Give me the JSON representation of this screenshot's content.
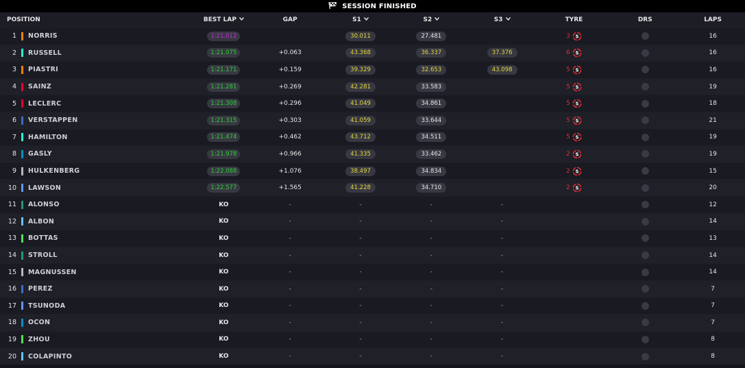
{
  "status": {
    "label": "SESSION FINISHED"
  },
  "columns": {
    "position": "POSITION",
    "best_lap": "BEST LAP",
    "gap": "GAP",
    "s1": "S1",
    "s2": "S2",
    "s3": "S3",
    "tyre": "TYRE",
    "drs": "DRS",
    "laps": "LAPS"
  },
  "rows": [
    {
      "pos": "1",
      "driver": "NORRIS",
      "team_color": "#ff8000",
      "best": "1:21.012",
      "best_color": "purple",
      "gap": "",
      "s1": "30.011",
      "s1_color": "yellow",
      "s2": "27.481",
      "s2_color": "white",
      "s3": "",
      "s3_color": "",
      "tyre_age": "3",
      "tyre_icon": "soft-tyre-icon",
      "laps": "16"
    },
    {
      "pos": "2",
      "driver": "RUSSELL",
      "team_color": "#27f4d2",
      "best": "1:21.075",
      "best_color": "green",
      "gap": "+0.063",
      "s1": "43.368",
      "s1_color": "yellow",
      "s2": "36.337",
      "s2_color": "yellow",
      "s3": "37.376",
      "s3_color": "yellow",
      "tyre_age": "6",
      "tyre_icon": "soft-tyre-icon",
      "laps": "16"
    },
    {
      "pos": "3",
      "driver": "PIASTRI",
      "team_color": "#ff8000",
      "best": "1:21.171",
      "best_color": "green",
      "gap": "+0.159",
      "s1": "39.329",
      "s1_color": "yellow",
      "s2": "32.653",
      "s2_color": "yellow",
      "s3": "43.098",
      "s3_color": "yellow",
      "tyre_age": "5",
      "tyre_icon": "soft-tyre-icon",
      "laps": "16"
    },
    {
      "pos": "4",
      "driver": "SAINZ",
      "team_color": "#e8002d",
      "best": "1:21.281",
      "best_color": "green",
      "gap": "+0.269",
      "s1": "42.281",
      "s1_color": "yellow",
      "s2": "33.583",
      "s2_color": "white",
      "s3": "",
      "s3_color": "",
      "tyre_age": "5",
      "tyre_icon": "soft-tyre-icon",
      "laps": "19"
    },
    {
      "pos": "5",
      "driver": "LECLERC",
      "team_color": "#e8002d",
      "best": "1:21.308",
      "best_color": "green",
      "gap": "+0.296",
      "s1": "41.049",
      "s1_color": "yellow",
      "s2": "34.861",
      "s2_color": "white",
      "s3": "",
      "s3_color": "",
      "tyre_age": "5",
      "tyre_icon": "soft-tyre-icon",
      "laps": "18"
    },
    {
      "pos": "6",
      "driver": "VERSTAPPEN",
      "team_color": "#3671c6",
      "best": "1:21.315",
      "best_color": "green",
      "gap": "+0.303",
      "s1": "41.059",
      "s1_color": "yellow",
      "s2": "33.644",
      "s2_color": "white",
      "s3": "",
      "s3_color": "",
      "tyre_age": "5",
      "tyre_icon": "soft-tyre-icon",
      "laps": "21"
    },
    {
      "pos": "7",
      "driver": "HAMILTON",
      "team_color": "#27f4d2",
      "best": "1:21.474",
      "best_color": "green",
      "gap": "+0.462",
      "s1": "43.712",
      "s1_color": "yellow",
      "s2": "34.511",
      "s2_color": "white",
      "s3": "",
      "s3_color": "",
      "tyre_age": "5",
      "tyre_icon": "soft-tyre-icon",
      "laps": "19"
    },
    {
      "pos": "8",
      "driver": "GASLY",
      "team_color": "#0093cc",
      "best": "1:21.978",
      "best_color": "green",
      "gap": "+0.966",
      "s1": "41.335",
      "s1_color": "yellow",
      "s2": "33.462",
      "s2_color": "white",
      "s3": "",
      "s3_color": "",
      "tyre_age": "2",
      "tyre_icon": "soft-tyre-icon",
      "laps": "19"
    },
    {
      "pos": "9",
      "driver": "HULKENBERG",
      "team_color": "#b6babd",
      "best": "1:22.088",
      "best_color": "green",
      "gap": "+1.076",
      "s1": "38.497",
      "s1_color": "yellow",
      "s2": "34.834",
      "s2_color": "white",
      "s3": "",
      "s3_color": "",
      "tyre_age": "2",
      "tyre_icon": "soft-tyre-icon",
      "laps": "15"
    },
    {
      "pos": "10",
      "driver": "LAWSON",
      "team_color": "#6692ff",
      "best": "1:22.577",
      "best_color": "green",
      "gap": "+1.565",
      "s1": "41.228",
      "s1_color": "yellow",
      "s2": "34.710",
      "s2_color": "white",
      "s3": "",
      "s3_color": "",
      "tyre_age": "2",
      "tyre_icon": "soft-tyre-icon",
      "laps": "20"
    },
    {
      "pos": "11",
      "driver": "ALONSO",
      "team_color": "#229971",
      "best": "KO",
      "best_color": "ko",
      "gap": "-",
      "s1": "-",
      "s1_color": "dash",
      "s2": "-",
      "s2_color": "dash",
      "s3": "-",
      "s3_color": "dash",
      "tyre_age": "",
      "tyre_icon": "",
      "laps": "12"
    },
    {
      "pos": "12",
      "driver": "ALBON",
      "team_color": "#64c4ff",
      "best": "KO",
      "best_color": "ko",
      "gap": "-",
      "s1": "-",
      "s1_color": "dash",
      "s2": "-",
      "s2_color": "dash",
      "s3": "-",
      "s3_color": "dash",
      "tyre_age": "",
      "tyre_icon": "",
      "laps": "14"
    },
    {
      "pos": "13",
      "driver": "BOTTAS",
      "team_color": "#52e252",
      "best": "KO",
      "best_color": "ko",
      "gap": "-",
      "s1": "-",
      "s1_color": "dash",
      "s2": "-",
      "s2_color": "dash",
      "s3": "-",
      "s3_color": "dash",
      "tyre_age": "",
      "tyre_icon": "",
      "laps": "13"
    },
    {
      "pos": "14",
      "driver": "STROLL",
      "team_color": "#229971",
      "best": "KO",
      "best_color": "ko",
      "gap": "-",
      "s1": "-",
      "s1_color": "dash",
      "s2": "-",
      "s2_color": "dash",
      "s3": "-",
      "s3_color": "dash",
      "tyre_age": "",
      "tyre_icon": "",
      "laps": "14"
    },
    {
      "pos": "15",
      "driver": "MAGNUSSEN",
      "team_color": "#b6babd",
      "best": "KO",
      "best_color": "ko",
      "gap": "-",
      "s1": "-",
      "s1_color": "dash",
      "s2": "-",
      "s2_color": "dash",
      "s3": "-",
      "s3_color": "dash",
      "tyre_age": "",
      "tyre_icon": "",
      "laps": "14"
    },
    {
      "pos": "16",
      "driver": "PEREZ",
      "team_color": "#3671c6",
      "best": "KO",
      "best_color": "ko",
      "gap": "-",
      "s1": "-",
      "s1_color": "dash",
      "s2": "-",
      "s2_color": "dash",
      "s3": "-",
      "s3_color": "dash",
      "tyre_age": "",
      "tyre_icon": "",
      "laps": "7"
    },
    {
      "pos": "17",
      "driver": "TSUNODA",
      "team_color": "#6692ff",
      "best": "KO",
      "best_color": "ko",
      "gap": "-",
      "s1": "-",
      "s1_color": "dash",
      "s2": "-",
      "s2_color": "dash",
      "s3": "-",
      "s3_color": "dash",
      "tyre_age": "",
      "tyre_icon": "",
      "laps": "7"
    },
    {
      "pos": "18",
      "driver": "OCON",
      "team_color": "#0093cc",
      "best": "KO",
      "best_color": "ko",
      "gap": "-",
      "s1": "-",
      "s1_color": "dash",
      "s2": "-",
      "s2_color": "dash",
      "s3": "-",
      "s3_color": "dash",
      "tyre_age": "",
      "tyre_icon": "",
      "laps": "7"
    },
    {
      "pos": "19",
      "driver": "ZHOU",
      "team_color": "#52e252",
      "best": "KO",
      "best_color": "ko",
      "gap": "-",
      "s1": "-",
      "s1_color": "dash",
      "s2": "-",
      "s2_color": "dash",
      "s3": "-",
      "s3_color": "dash",
      "tyre_age": "",
      "tyre_icon": "",
      "laps": "8"
    },
    {
      "pos": "20",
      "driver": "COLAPINTO",
      "team_color": "#64c4ff",
      "best": "KO",
      "best_color": "ko",
      "gap": "-",
      "s1": "-",
      "s1_color": "dash",
      "s2": "-",
      "s2_color": "dash",
      "s3": "-",
      "s3_color": "dash",
      "tyre_age": "",
      "tyre_icon": "",
      "laps": "8"
    }
  ]
}
